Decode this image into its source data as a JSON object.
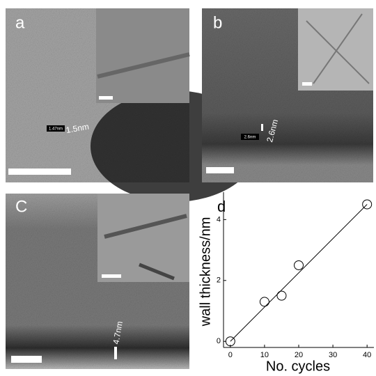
{
  "panels": {
    "a": {
      "label": "a",
      "small_label": "1.47nm",
      "measure": "1.5nm"
    },
    "b": {
      "label": "b",
      "small_label": "2.6nm",
      "measure": "2.6nm"
    },
    "c": {
      "label": "C",
      "measure": "4.7nm"
    }
  },
  "chart_data": {
    "type": "scatter",
    "label": "d",
    "x_label": "No. cycles",
    "y_label": "wall thickness/nm",
    "x": [
      0,
      10,
      15,
      20,
      40
    ],
    "values": [
      0,
      1.3,
      1.5,
      2.5,
      4.5
    ],
    "fit_line": {
      "x": [
        0,
        40
      ],
      "y": [
        0,
        4.5
      ]
    },
    "color": "#000000",
    "xlim": [
      -2,
      42
    ],
    "ylim": [
      -0.2,
      4.9
    ],
    "xticks": [
      0,
      10,
      20,
      30,
      40
    ],
    "yticks": [
      0,
      2,
      4
    ]
  }
}
